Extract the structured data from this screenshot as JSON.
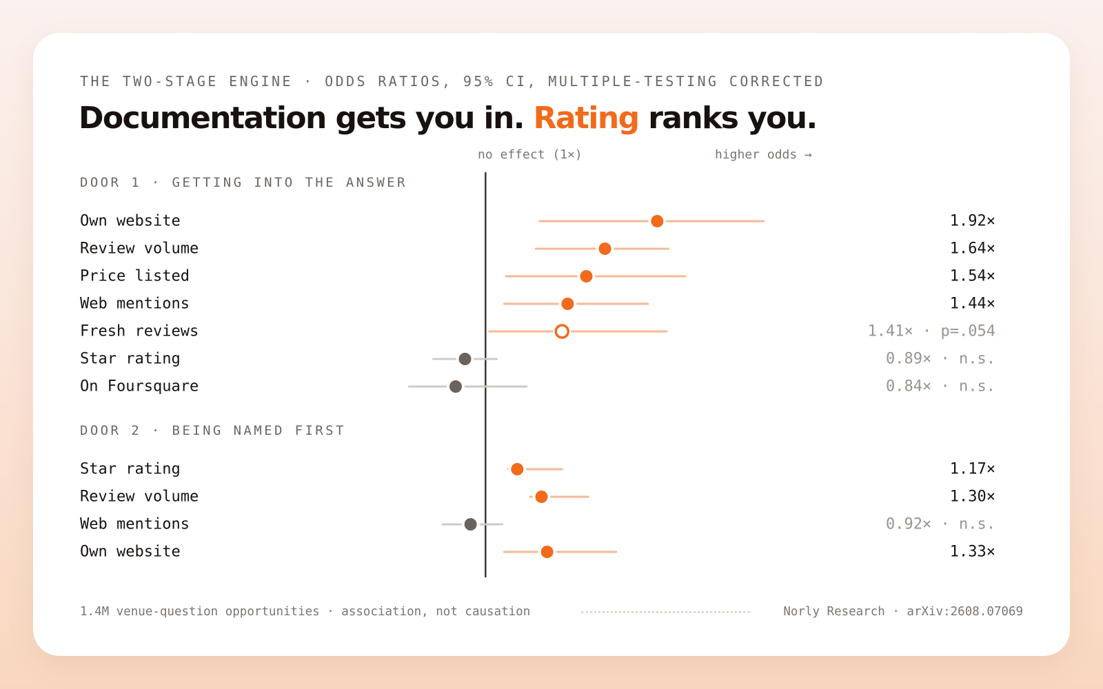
{
  "kicker": "THE TWO-STAGE ENGINE · ODDS RATIOS, 95% CI, MULTIPLE-TESTING CORRECTED",
  "headline": {
    "part1": "Documentation gets you in. ",
    "accent": "Rating",
    "part2": " ranks you."
  },
  "axis": {
    "no_effect_label": "no effect (1×)",
    "higher_label": "higher odds →"
  },
  "colors": {
    "accent": "#f26a1b",
    "ci_significant": "#f6b896",
    "ci_not_significant": "#cfcac6",
    "point_not_significant": "#6b625c",
    "reference_line": "#3b3532"
  },
  "chart_data": {
    "type": "forest",
    "reference_value": 1,
    "xlim": [
      0.6,
      2.65
    ],
    "sections": [
      {
        "label": "DOOR 1 · GETTING INTO THE ANSWER",
        "rows": [
          {
            "label": "Own website",
            "or": 1.92,
            "ci": [
              1.29,
              2.49
            ],
            "status": "sig",
            "value_label": "1.92×"
          },
          {
            "label": "Review volume",
            "or": 1.64,
            "ci": [
              1.27,
              1.98
            ],
            "status": "sig",
            "value_label": "1.64×"
          },
          {
            "label": "Price listed",
            "or": 1.54,
            "ci": [
              1.11,
              2.07
            ],
            "status": "sig",
            "value_label": "1.54×"
          },
          {
            "label": "Web mentions",
            "or": 1.44,
            "ci": [
              1.1,
              1.87
            ],
            "status": "sig",
            "value_label": "1.44×"
          },
          {
            "label": "Fresh reviews",
            "or": 1.41,
            "ci": [
              1.02,
              1.97
            ],
            "status": "marginal",
            "value_label": "1.41× · p=.054"
          },
          {
            "label": "Star rating",
            "or": 0.89,
            "ci": [
              0.72,
              1.06
            ],
            "status": "ns",
            "value_label": "0.89× · n.s."
          },
          {
            "label": "On Foursquare",
            "or": 0.84,
            "ci": [
              0.59,
              1.22
            ],
            "status": "ns",
            "value_label": "0.84× · n.s."
          }
        ]
      },
      {
        "label": "DOOR 2 · BEING NAMED FIRST",
        "rows": [
          {
            "label": "Star rating",
            "or": 1.17,
            "ci": [
              1.12,
              1.41
            ],
            "status": "sig",
            "value_label": "1.17×"
          },
          {
            "label": "Review volume",
            "or": 1.3,
            "ci": [
              1.24,
              1.55
            ],
            "status": "sig",
            "value_label": "1.30×"
          },
          {
            "label": "Web mentions",
            "or": 0.92,
            "ci": [
              0.77,
              1.09
            ],
            "status": "ns",
            "value_label": "0.92× · n.s."
          },
          {
            "label": "Own website",
            "or": 1.33,
            "ci": [
              1.1,
              1.7
            ],
            "status": "sig",
            "value_label": "1.33×"
          }
        ]
      }
    ]
  },
  "footer": {
    "left": "1.4M venue-question opportunities · association, not causation",
    "right": "Norly Research · arXiv:2608.07069"
  }
}
